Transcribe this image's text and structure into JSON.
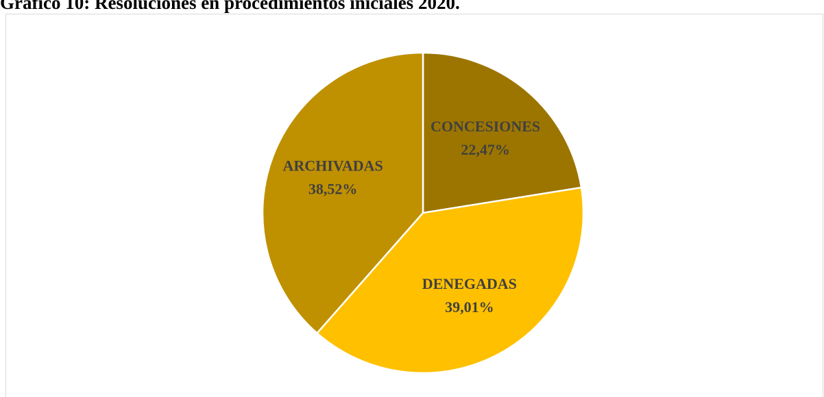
{
  "chart_data": {
    "type": "pie",
    "title": "Gráfico 10: Resoluciones en procedimientos iniciales 2020.",
    "categories": [
      "CONCESIONES",
      "DENEGADAS",
      "ARCHIVADAS"
    ],
    "values": [
      22.47,
      39.01,
      38.52
    ],
    "value_labels": [
      "22,47%",
      "39,01%",
      "38,52%"
    ],
    "colors": [
      "#9c7500",
      "#ffc000",
      "#bf9000"
    ]
  }
}
